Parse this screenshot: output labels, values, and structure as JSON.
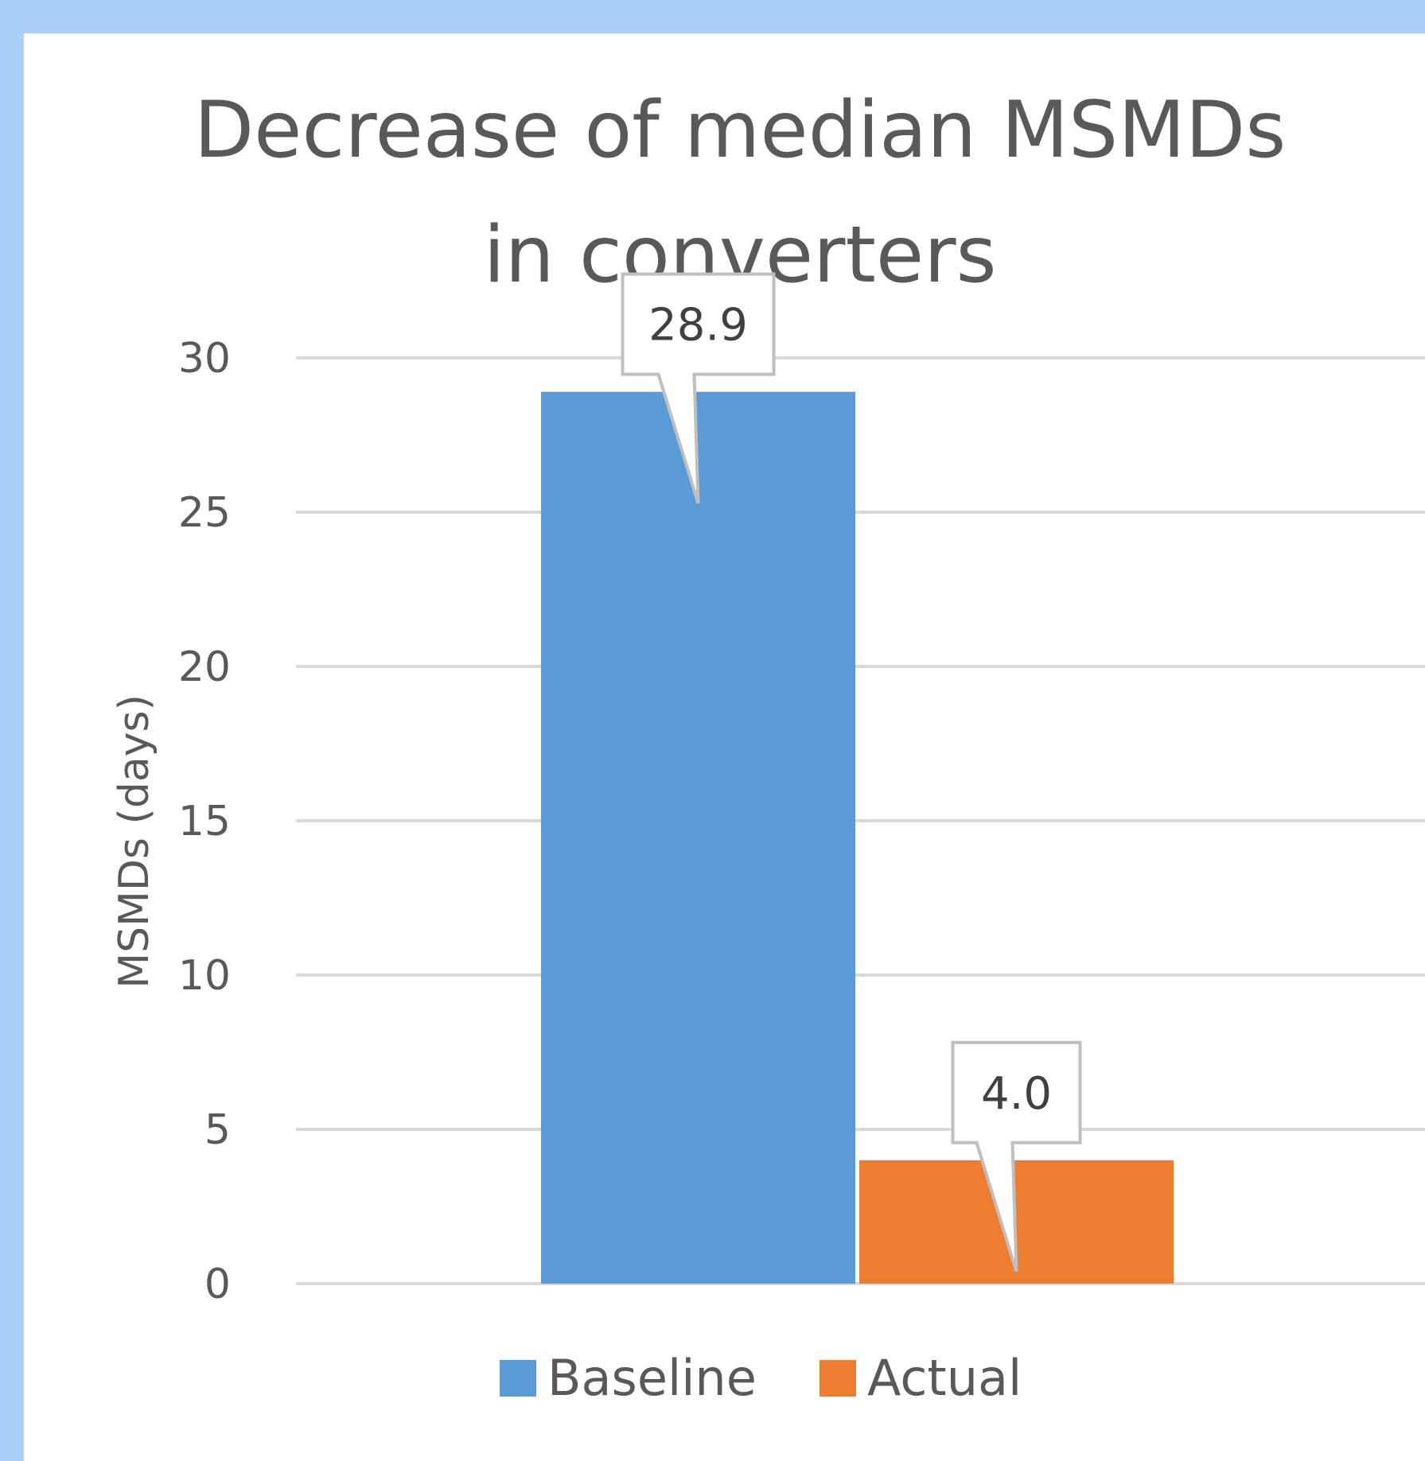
{
  "chart_data": {
    "type": "bar",
    "title_lines": [
      "Decrease of median MSMDs",
      "in converters"
    ],
    "xlabel": "",
    "ylabel": "MSMDs (days)",
    "ylim": [
      0,
      30
    ],
    "yticks": [
      0,
      5,
      10,
      15,
      20,
      25,
      30
    ],
    "grid": true,
    "legend_position": "bottom",
    "categories": [
      ""
    ],
    "series": [
      {
        "name": "Baseline",
        "values": [
          28.9
        ],
        "color": "#5b9bd5",
        "label": "28.9"
      },
      {
        "name": "Actual",
        "values": [
          4.0
        ],
        "color": "#ed7d31",
        "label": "4.0"
      }
    ]
  }
}
